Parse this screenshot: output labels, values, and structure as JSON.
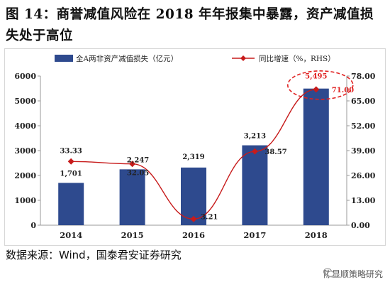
{
  "figure": {
    "title": "图 14：商誉减值风险在 2018 年年报集中暴露，资产减值损失处于高位",
    "source": "数据来源：Wind，国泰君安证券研究",
    "watermark": "陈显顺策略研究"
  },
  "colors": {
    "bar": "#2e4a8e",
    "line": "#c71b1b",
    "marker": "#c71b1b",
    "highlight": "#e02020",
    "grid": "#d9d9d9"
  },
  "chart_data": {
    "type": "bar",
    "categories": [
      "2014",
      "2015",
      "2016",
      "2017",
      "2018"
    ],
    "series": [
      {
        "name": "全A两非资产减值损失（亿元）",
        "type": "bar",
        "axis": "left",
        "values": [
          1701,
          2247,
          2319,
          3213,
          5495
        ],
        "labels": [
          "1,701",
          "2,247",
          "2,319",
          "3,213",
          "5,495"
        ]
      },
      {
        "name": "同比增速（%，RHS）",
        "type": "line",
        "axis": "right",
        "values": [
          33.33,
          32.05,
          3.21,
          38.57,
          71.0
        ],
        "labels": [
          "33.33",
          "32.05",
          "3.21",
          "38.57",
          "71.00"
        ]
      }
    ],
    "left_axis": {
      "ylim": [
        0,
        6000
      ],
      "ticks": [
        "0",
        "1000",
        "2000",
        "3000",
        "4000",
        "5000",
        "6000"
      ]
    },
    "right_axis": {
      "ylim": [
        0,
        78
      ],
      "ticks": [
        "0.00",
        "13.00",
        "26.00",
        "39.00",
        "52.00",
        "65.00",
        "78.00"
      ]
    },
    "legend_position": "top",
    "grid": false,
    "annotation": "dashed red ellipse highlighting 2018"
  }
}
